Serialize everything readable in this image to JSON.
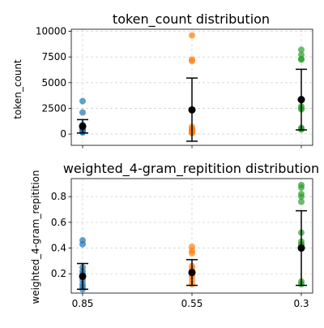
{
  "chart_data": [
    {
      "type": "scatter",
      "title": "token_count distribution",
      "xlabel": "",
      "ylabel": "token_count",
      "categories": [
        "0.85",
        "0.55",
        "0.3"
      ],
      "ylim": [
        -1100,
        10200
      ],
      "yticks": [
        0,
        2500,
        5000,
        7500,
        10000
      ],
      "yticklabels": [
        "0",
        "2500",
        "5000",
        "7500",
        "10000"
      ],
      "xticklabels": [
        "",
        "",
        ""
      ],
      "grid": true,
      "point_colors": [
        "#1f77b4",
        "#ff7f0e",
        "#2ca02c"
      ],
      "point_values": [
        [
          3200,
          2100,
          900,
          700,
          500,
          400,
          300,
          200,
          150
        ],
        [
          9600,
          7250,
          7100,
          700,
          500,
          400,
          300,
          200,
          150,
          100
        ],
        [
          8200,
          7700,
          7300,
          7250,
          2700,
          2500,
          2400,
          600,
          500,
          450
        ]
      ],
      "means": [
        750,
        2350,
        3350
      ],
      "errors": [
        [
          100,
          1400
        ],
        [
          -700,
          5450
        ],
        [
          400,
          6300
        ]
      ]
    },
    {
      "type": "scatter",
      "title": "weighted_4-gram_repitition distribution",
      "xlabel": "",
      "ylabel": "weighted_4-gram_repitition",
      "categories": [
        "0.85",
        "0.55",
        "0.3"
      ],
      "ylim": [
        0.05,
        0.94
      ],
      "yticks": [
        0.2,
        0.4,
        0.6,
        0.8
      ],
      "yticklabels": [
        "0.2",
        "0.4",
        "0.6",
        "0.8"
      ],
      "xticklabels": [
        "0.85",
        "0.55",
        "0.3"
      ],
      "grid": true,
      "point_colors": [
        "#1f77b4",
        "#ff7f0e",
        "#2ca02c"
      ],
      "point_values": [
        [
          0.46,
          0.43,
          0.25,
          0.22,
          0.2,
          0.18,
          0.15,
          0.12,
          0.1,
          0.08
        ],
        [
          0.41,
          0.38,
          0.36,
          0.26,
          0.24,
          0.22,
          0.2,
          0.18,
          0.15,
          0.12
        ],
        [
          0.89,
          0.87,
          0.82,
          0.8,
          0.76,
          0.52,
          0.45,
          0.43,
          0.42,
          0.14,
          0.12
        ]
      ],
      "means": [
        0.18,
        0.21,
        0.4
      ],
      "errors": [
        [
          0.08,
          0.28
        ],
        [
          0.11,
          0.31
        ],
        [
          0.11,
          0.69
        ]
      ]
    }
  ]
}
